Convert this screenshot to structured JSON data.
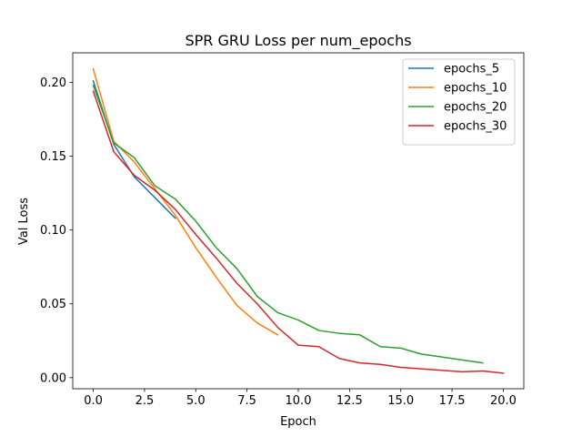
{
  "chart_data": {
    "type": "line",
    "title": "SPR GRU Loss per num_epochs",
    "xlabel": "Epoch",
    "ylabel": "Val Loss",
    "xlim": [
      -1.0,
      21.0
    ],
    "ylim": [
      -0.0075,
      0.22
    ],
    "xticks": [
      0.0,
      2.5,
      5.0,
      7.5,
      10.0,
      12.5,
      15.0,
      17.5,
      20.0
    ],
    "xtick_labels": [
      "0.0",
      "2.5",
      "5.0",
      "7.5",
      "10.0",
      "12.5",
      "15.0",
      "17.5",
      "20.0"
    ],
    "yticks": [
      0.0,
      0.05,
      0.1,
      0.15,
      0.2
    ],
    "ytick_labels": [
      "0.00",
      "0.05",
      "0.10",
      "0.15",
      "0.20"
    ],
    "grid": false,
    "legend_position": "top-right",
    "series": [
      {
        "name": "epochs_5",
        "color": "#1f77b4",
        "x": [
          0,
          1,
          2,
          3,
          4
        ],
        "y": [
          0.201,
          0.158,
          0.136,
          0.122,
          0.108
        ]
      },
      {
        "name": "epochs_10",
        "color": "#ff7f0e",
        "x": [
          0,
          1,
          2,
          3,
          4,
          5,
          6,
          7,
          8,
          9
        ],
        "y": [
          0.209,
          0.16,
          0.146,
          0.128,
          0.11,
          0.088,
          0.068,
          0.049,
          0.037,
          0.029
        ]
      },
      {
        "name": "epochs_20",
        "color": "#2ca02c",
        "x": [
          0,
          1,
          2,
          3,
          4,
          5,
          6,
          7,
          8,
          9,
          10,
          11,
          12,
          13,
          14,
          15,
          16,
          17,
          18,
          19
        ],
        "y": [
          0.198,
          0.159,
          0.149,
          0.13,
          0.121,
          0.106,
          0.088,
          0.074,
          0.055,
          0.044,
          0.039,
          0.032,
          0.03,
          0.029,
          0.021,
          0.02,
          0.016,
          0.014,
          0.012,
          0.01
        ]
      },
      {
        "name": "epochs_30",
        "color": "#d62728",
        "x": [
          0,
          1,
          2,
          3,
          4,
          5,
          6,
          7,
          8,
          9,
          10,
          11,
          12,
          13,
          14,
          15,
          16,
          17,
          18,
          19,
          20
        ],
        "y": [
          0.194,
          0.153,
          0.137,
          0.127,
          0.114,
          0.097,
          0.081,
          0.064,
          0.05,
          0.034,
          0.022,
          0.021,
          0.013,
          0.01,
          0.009,
          0.007,
          0.006,
          0.005,
          0.004,
          0.0045,
          0.003
        ]
      }
    ]
  }
}
